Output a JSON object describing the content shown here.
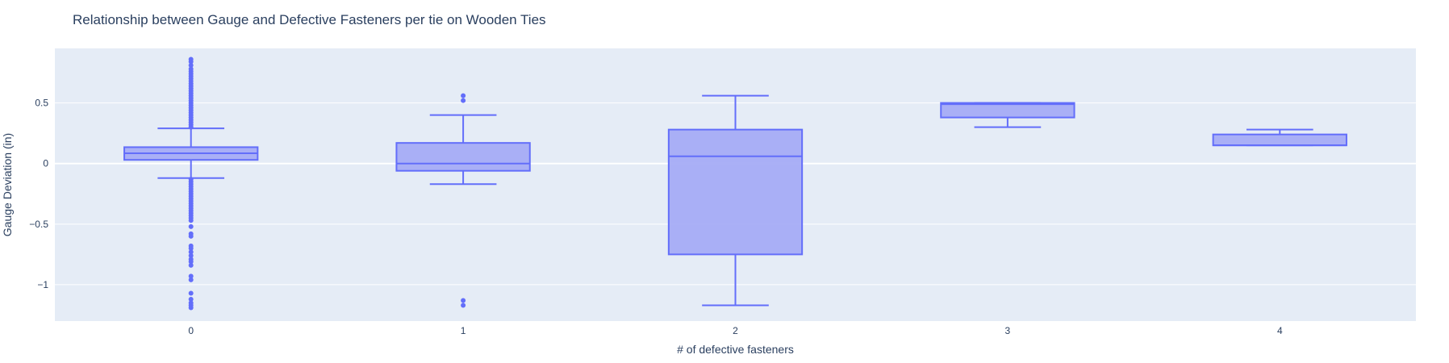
{
  "chart_data": {
    "type": "box",
    "title": "Relationship between Gauge and Defective Fasteners per tie on Wooden Ties",
    "xlabel": "# of defective fasteners",
    "ylabel": "Gauge Deviation (in)",
    "ylim": [
      -1.3,
      0.95
    ],
    "yticks": [
      {
        "value": 0.5,
        "label": "0.5"
      },
      {
        "value": 0,
        "label": "0"
      },
      {
        "value": -0.5,
        "label": "−0.5"
      },
      {
        "value": -1,
        "label": "−1"
      }
    ],
    "grid": true,
    "colors": {
      "plot_bg": "#e5ecf6",
      "grid": "#ffffff",
      "box_fill": "#a5acf5",
      "box_line": "#636efa",
      "text": "#2a3f5f"
    },
    "categories": [
      "0",
      "1",
      "2",
      "3",
      "4"
    ],
    "boxes": [
      {
        "category": "0",
        "min": -0.12,
        "q1": 0.03,
        "median": 0.085,
        "q3": 0.135,
        "max": 0.29,
        "outliers": [
          0.86,
          0.84,
          0.81,
          0.78,
          0.76,
          0.74,
          0.72,
          0.7,
          0.68,
          0.66,
          0.64,
          0.62,
          0.6,
          0.58,
          0.56,
          0.54,
          0.52,
          0.5,
          0.48,
          0.46,
          0.44,
          0.42,
          0.4,
          0.38,
          0.36,
          0.34,
          0.32,
          0.3,
          -0.13,
          -0.15,
          -0.17,
          -0.19,
          -0.21,
          -0.23,
          -0.25,
          -0.27,
          -0.29,
          -0.31,
          -0.33,
          -0.35,
          -0.37,
          -0.39,
          -0.41,
          -0.43,
          -0.45,
          -0.47,
          -0.52,
          -0.58,
          -0.6,
          -0.68,
          -0.7,
          -0.73,
          -0.76,
          -0.79,
          -0.81,
          -0.84,
          -0.93,
          -0.96,
          -1.07,
          -1.12,
          -1.15,
          -1.17,
          -1.19
        ]
      },
      {
        "category": "1",
        "min": -0.17,
        "q1": -0.06,
        "median": 0.0,
        "q3": 0.17,
        "max": 0.4,
        "outliers": [
          0.56,
          0.52,
          -1.13,
          -1.17
        ]
      },
      {
        "category": "2",
        "min": -1.17,
        "q1": -0.75,
        "median": 0.06,
        "q3": 0.28,
        "max": 0.56,
        "outliers": []
      },
      {
        "category": "3",
        "min": 0.3,
        "q1": 0.38,
        "median": 0.49,
        "q3": 0.5,
        "max": 0.5,
        "outliers": []
      },
      {
        "category": "4",
        "min": 0.15,
        "q1": 0.15,
        "median": 0.15,
        "q3": 0.24,
        "max": 0.28,
        "outliers": []
      }
    ]
  }
}
